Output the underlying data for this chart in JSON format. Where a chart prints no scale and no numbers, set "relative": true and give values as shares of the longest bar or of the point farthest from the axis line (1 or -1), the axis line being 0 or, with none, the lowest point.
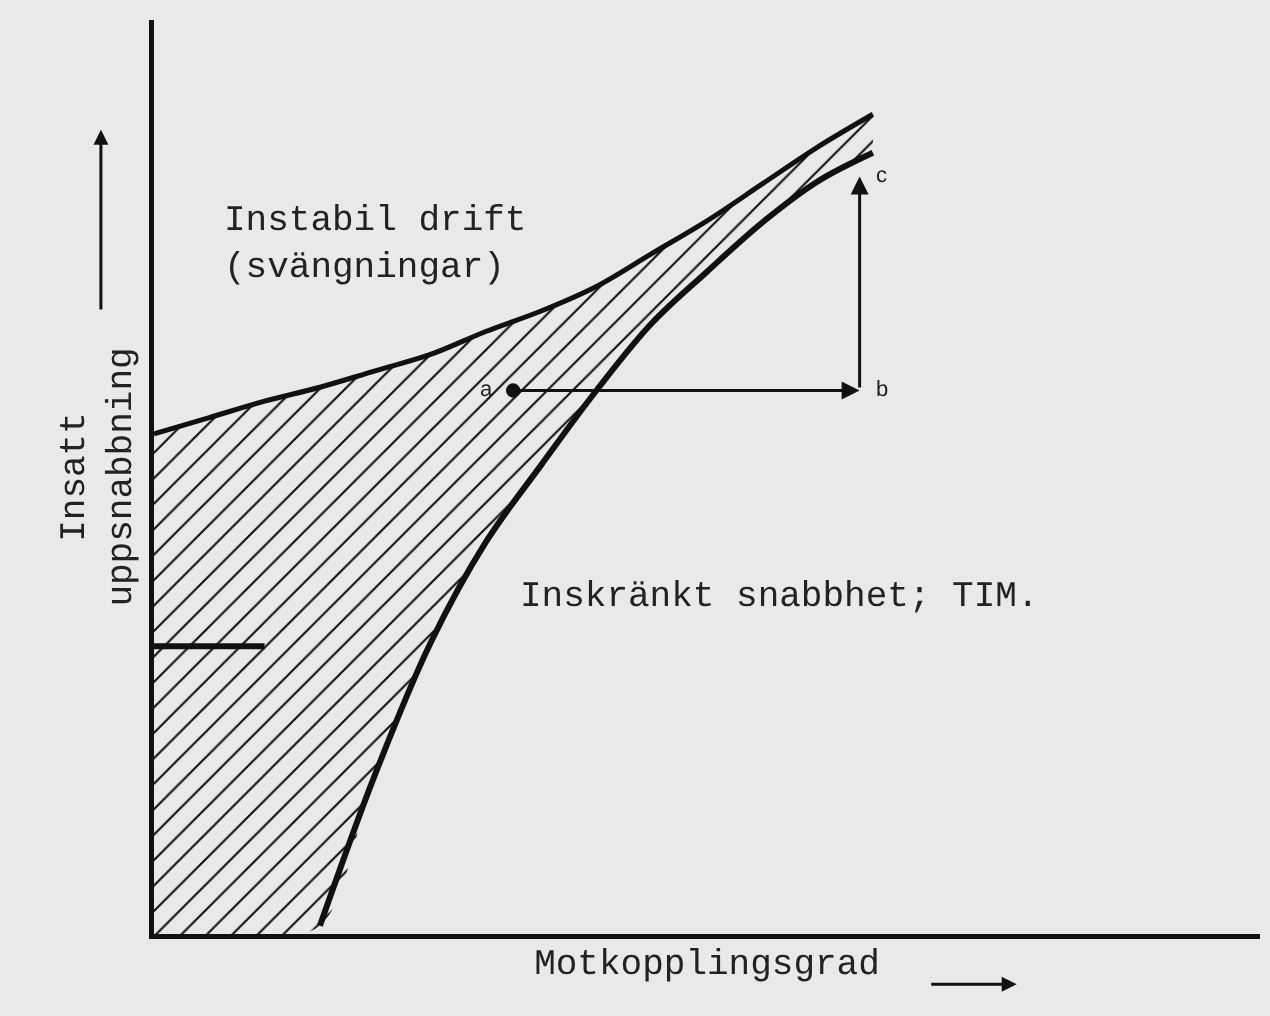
{
  "chart_data": {
    "type": "line",
    "relative": true,
    "xlabel": "Motkopplingsgrad",
    "ylabel": "Insatt\nuppsnabbning",
    "categories": [
      null,
      null,
      null,
      null,
      null,
      null,
      null,
      null,
      null,
      null,
      null,
      null,
      null,
      null,
      null,
      null,
      null,
      null,
      null,
      null,
      null
    ],
    "tick_labels": false,
    "grid": false,
    "marker": "none",
    "line_style": "solid",
    "series": [
      {
        "type": "area",
        "color": "#111111",
        "values": [
          0.61,
          0.63,
          0.65,
          0.667,
          0.687,
          0.707,
          0.735,
          0.76,
          0.79,
          0.83,
          0.87,
          0.915,
          0.96,
          1.0,
          null,
          null,
          null,
          null,
          null,
          null,
          null
        ]
      },
      {
        "type": "line",
        "color": "#111111",
        "values": [
          null,
          null,
          null,
          0.01,
          0.195,
          0.355,
          0.478,
          0.572,
          0.663,
          0.745,
          0.808,
          0.868,
          0.918,
          0.953,
          null,
          null,
          null,
          null,
          null,
          null,
          null
        ]
      }
    ],
    "ref_lines": [
      {
        "axis": "y",
        "value": 0.351
      }
    ],
    "annotations": [
      "Instabil drift\n(svängningar)",
      "Inskränkt snabbhet; TIM.",
      "a",
      "b",
      "c"
    ]
  }
}
